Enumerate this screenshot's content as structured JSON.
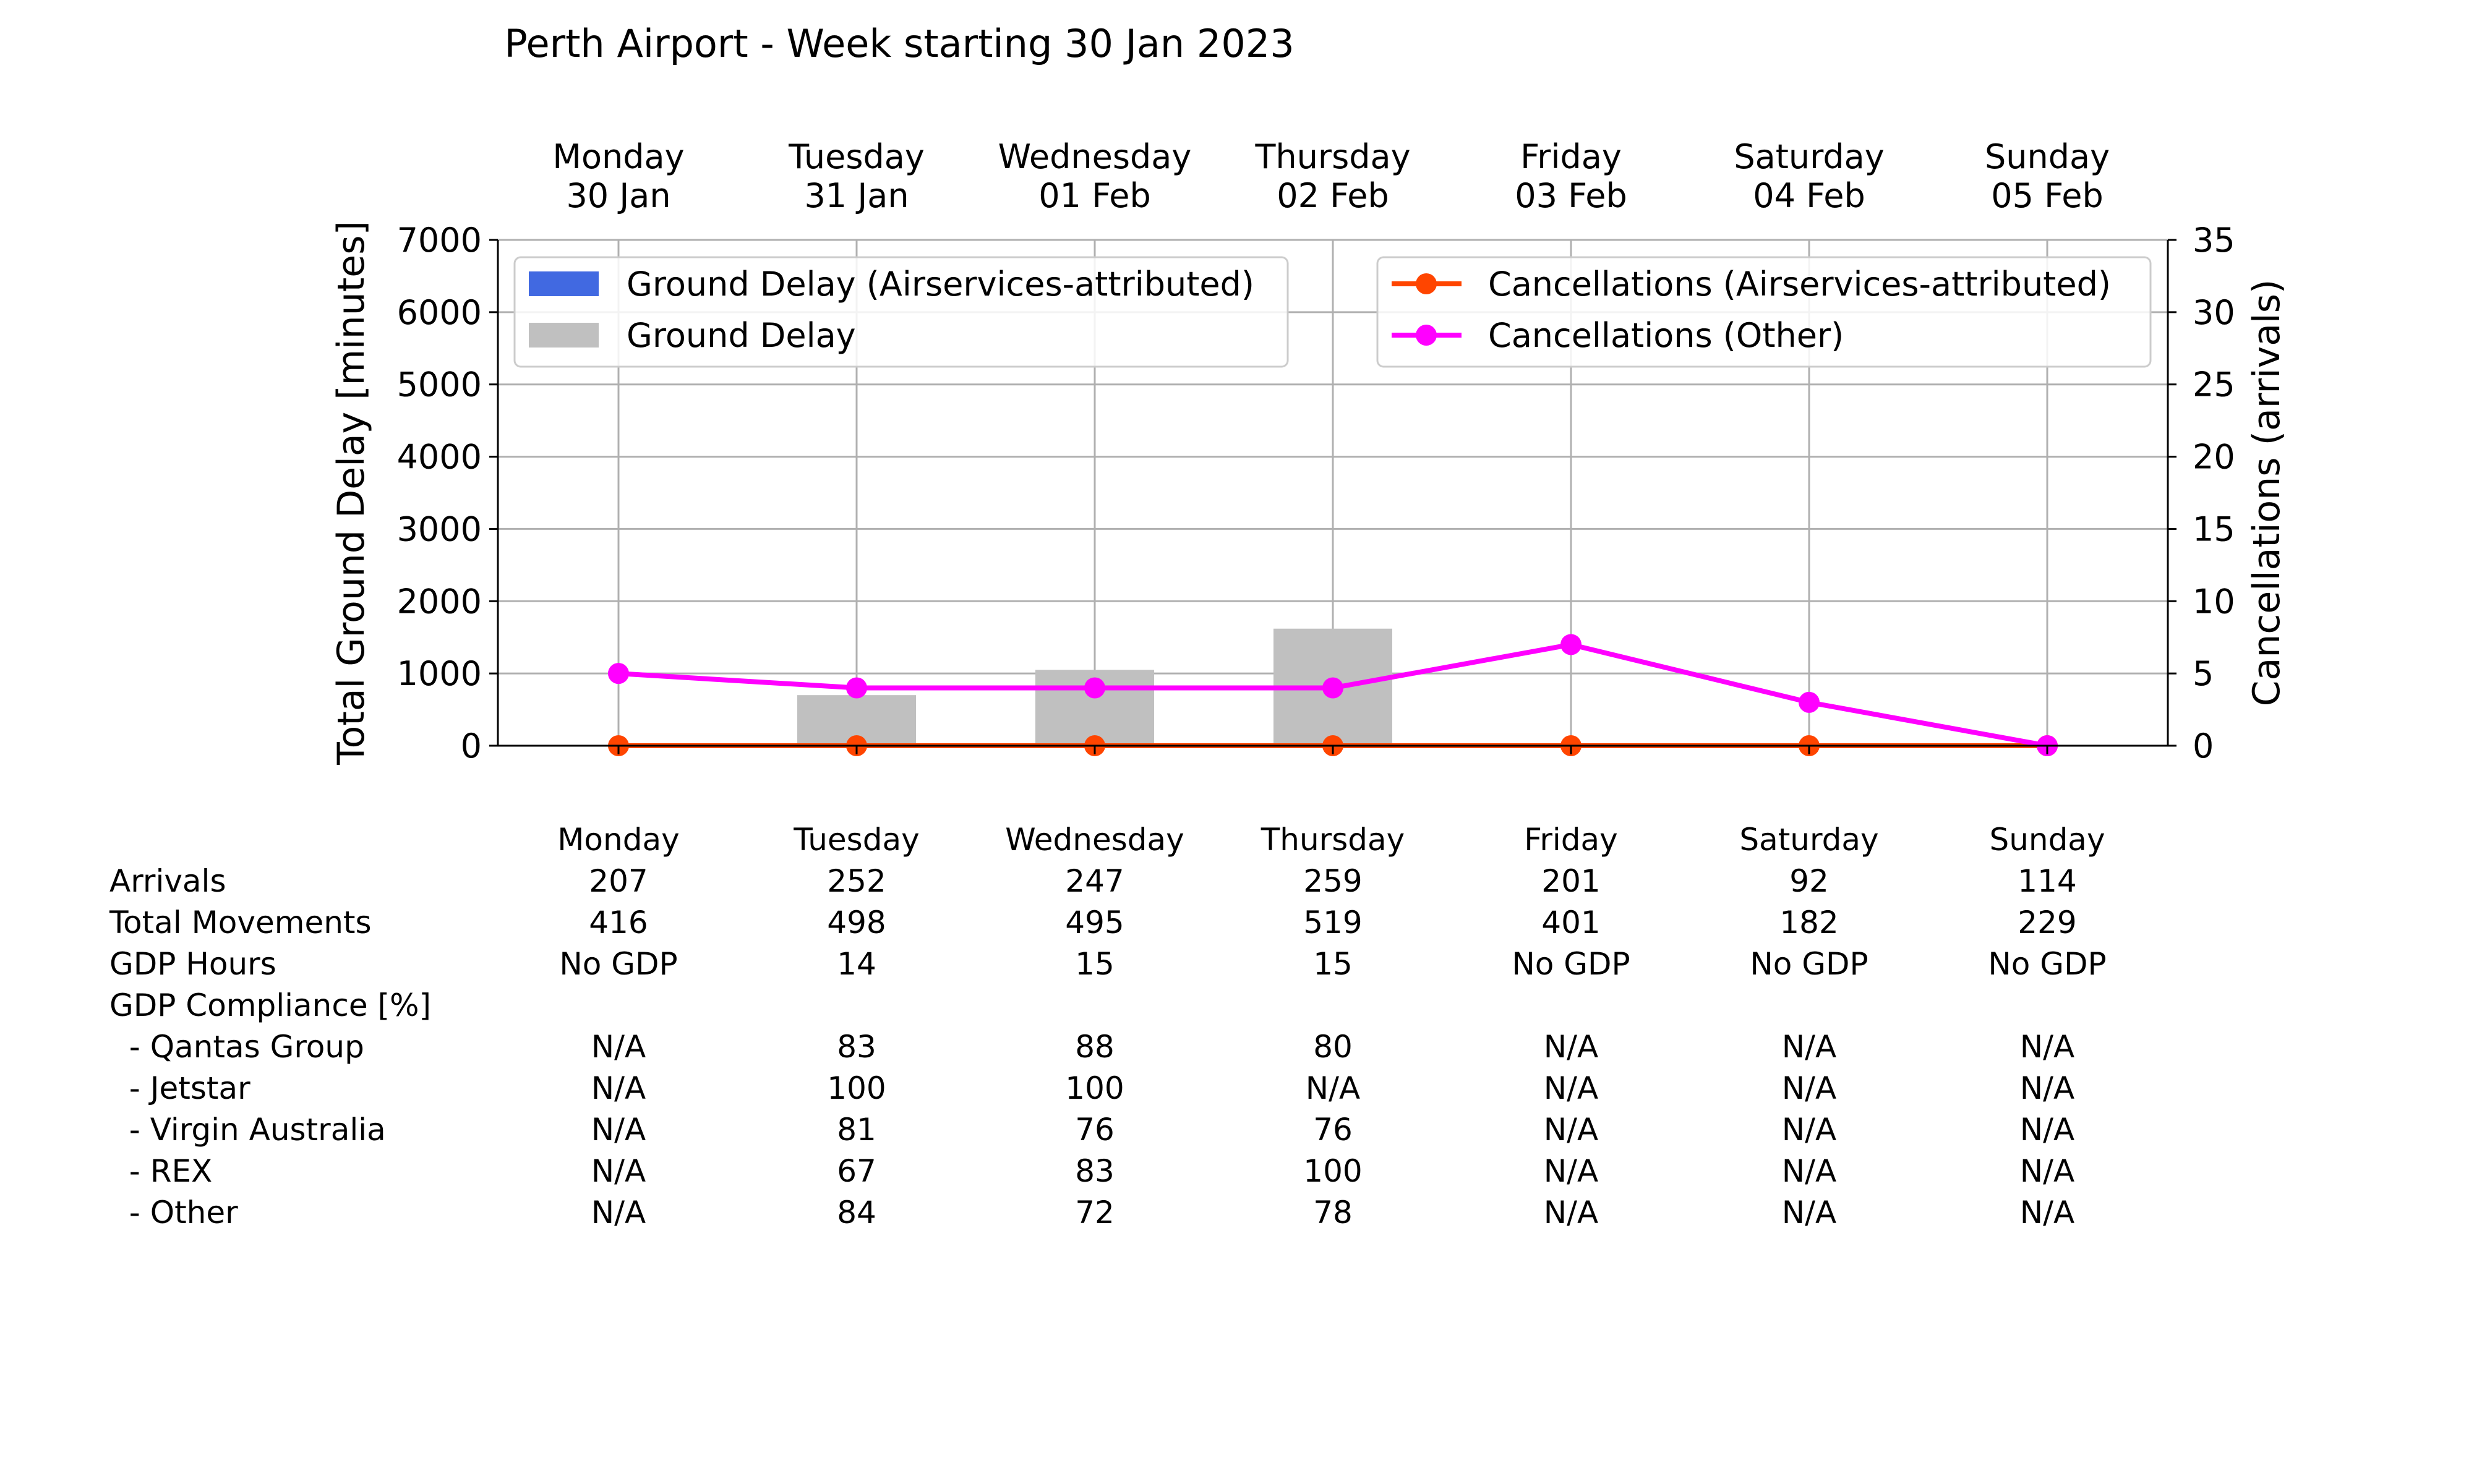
{
  "chart_data": {
    "type": "bar+line",
    "title": "Perth Airport - Week starting 30 Jan 2023",
    "days": [
      {
        "name": "Monday",
        "date": "30 Jan"
      },
      {
        "name": "Tuesday",
        "date": "31 Jan"
      },
      {
        "name": "Wednesday",
        "date": "01 Feb"
      },
      {
        "name": "Thursday",
        "date": "02 Feb"
      },
      {
        "name": "Friday",
        "date": "03 Feb"
      },
      {
        "name": "Saturday",
        "date": "04 Feb"
      },
      {
        "name": "Sunday",
        "date": "05 Feb"
      }
    ],
    "y_left": {
      "label": "Total Ground Delay [minutes]",
      "lim": [
        0,
        7000
      ],
      "ticks": [
        0,
        1000,
        2000,
        3000,
        4000,
        5000,
        6000,
        7000
      ]
    },
    "y_right": {
      "label": "Cancellations (arrivals)",
      "lim": [
        0,
        35
      ],
      "ticks": [
        0,
        5,
        10,
        15,
        20,
        25,
        30,
        35
      ]
    },
    "grid": true,
    "bar_series": [
      {
        "name": "Ground Delay (Airservices-attributed)",
        "color": "#4169e1",
        "values": [
          0,
          0,
          0,
          0,
          0,
          0,
          0
        ]
      },
      {
        "name": "Ground Delay",
        "color": "#c0c0c0",
        "values": [
          0,
          700,
          1050,
          1620,
          0,
          0,
          0
        ]
      }
    ],
    "line_series": [
      {
        "name": "Cancellations (Airservices-attributed)",
        "color": "#ff4500",
        "values": [
          0,
          0,
          0,
          0,
          0,
          0,
          0
        ]
      },
      {
        "name": "Cancellations (Other)",
        "color": "#ff00ff",
        "values": [
          5,
          4,
          4,
          4,
          7,
          3,
          0
        ]
      }
    ],
    "legend_bars_position": "upper-left",
    "legend_lines_position": "upper-right",
    "table": {
      "header": [
        "Monday",
        "Tuesday",
        "Wednesday",
        "Thursday",
        "Friday",
        "Saturday",
        "Sunday"
      ],
      "rows": [
        {
          "label": "Arrivals",
          "values": [
            "207",
            "252",
            "247",
            "259",
            "201",
            "92",
            "114"
          ]
        },
        {
          "label": "Total Movements",
          "values": [
            "416",
            "498",
            "495",
            "519",
            "401",
            "182",
            "229"
          ]
        },
        {
          "label": "GDP Hours",
          "values": [
            "No GDP",
            "14",
            "15",
            "15",
            "No GDP",
            "No GDP",
            "No GDP"
          ]
        },
        {
          "label": "GDP Compliance [%]",
          "values": [
            "",
            "",
            "",
            "",
            "",
            "",
            ""
          ]
        },
        {
          "label": "  - Qantas Group",
          "values": [
            "N/A",
            "83",
            "88",
            "80",
            "N/A",
            "N/A",
            "N/A"
          ]
        },
        {
          "label": "  - Jetstar",
          "values": [
            "N/A",
            "100",
            "100",
            "N/A",
            "N/A",
            "N/A",
            "N/A"
          ]
        },
        {
          "label": "  - Virgin Australia",
          "values": [
            "N/A",
            "81",
            "76",
            "76",
            "N/A",
            "N/A",
            "N/A"
          ]
        },
        {
          "label": "  - REX",
          "values": [
            "N/A",
            "67",
            "83",
            "100",
            "N/A",
            "N/A",
            "N/A"
          ]
        },
        {
          "label": "  - Other",
          "values": [
            "N/A",
            "84",
            "72",
            "78",
            "N/A",
            "N/A",
            "N/A"
          ]
        }
      ]
    }
  }
}
